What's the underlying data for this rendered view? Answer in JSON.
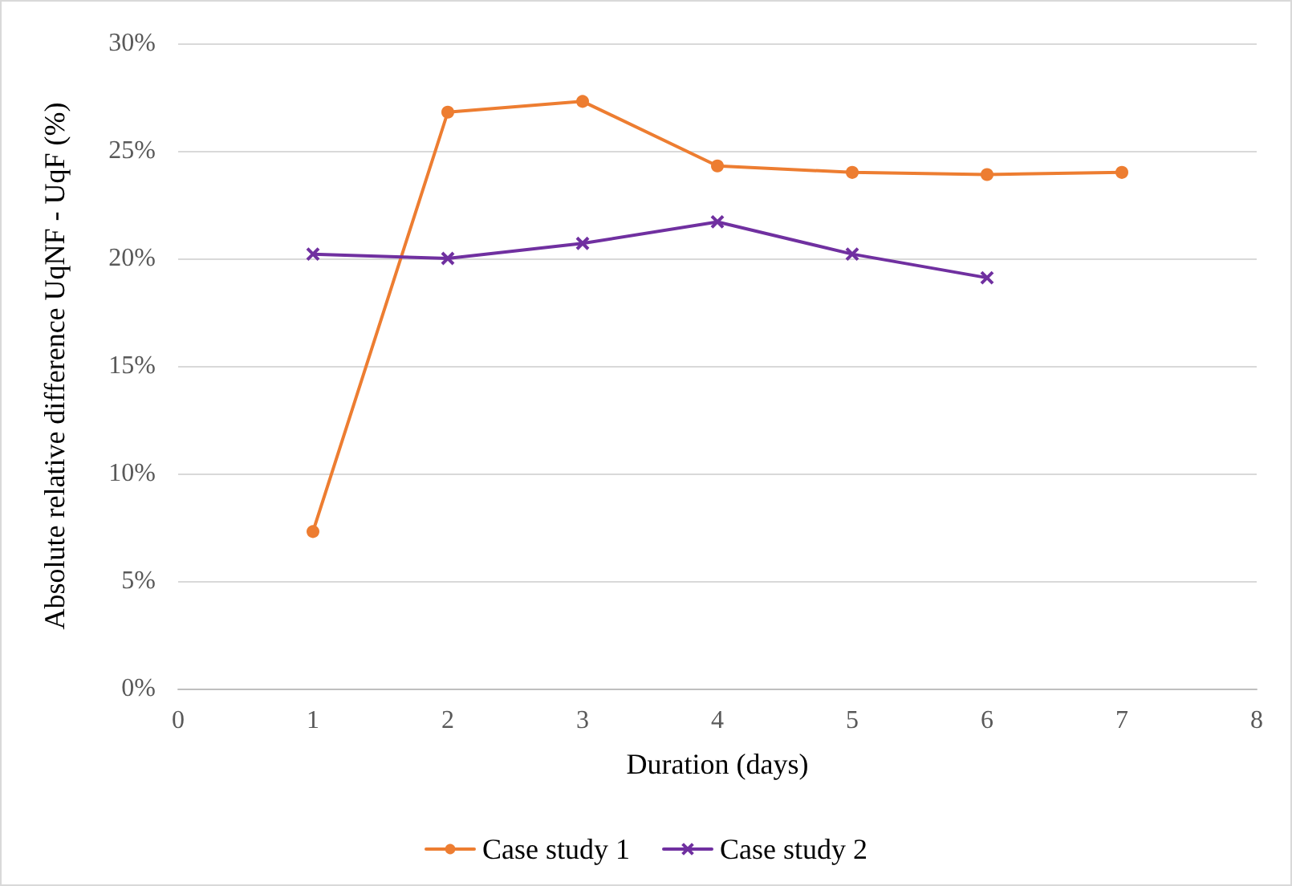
{
  "chart_data": {
    "type": "line",
    "xlabel": "Duration (days)",
    "ylabel": "Absolute relative difference UqNF - UqF (%)",
    "xlim": [
      0,
      8
    ],
    "xticks": [
      0,
      1,
      2,
      3,
      4,
      5,
      6,
      7,
      8
    ],
    "ylim": [
      0,
      30
    ],
    "yticks": [
      {
        "value": 0,
        "label": "0%"
      },
      {
        "value": 5,
        "label": "5%"
      },
      {
        "value": 10,
        "label": "10%"
      },
      {
        "value": 15,
        "label": "15%"
      },
      {
        "value": 20,
        "label": "20%"
      },
      {
        "value": 25,
        "label": "25%"
      },
      {
        "value": 30,
        "label": "30%"
      }
    ],
    "grid": "y",
    "legend": "bottom",
    "series": [
      {
        "name": "Case study 1",
        "color": "#ed7d31",
        "marker": "circle",
        "x": [
          1,
          2,
          3,
          4,
          5,
          6,
          7
        ],
        "values": [
          7.3,
          26.8,
          27.3,
          24.3,
          24.0,
          23.9,
          24.0
        ]
      },
      {
        "name": "Case study 2",
        "color": "#7030a0",
        "marker": "cross",
        "x": [
          1,
          2,
          3,
          4,
          5,
          6
        ],
        "values": [
          20.2,
          20.0,
          20.7,
          21.7,
          20.2,
          19.1
        ]
      }
    ]
  }
}
